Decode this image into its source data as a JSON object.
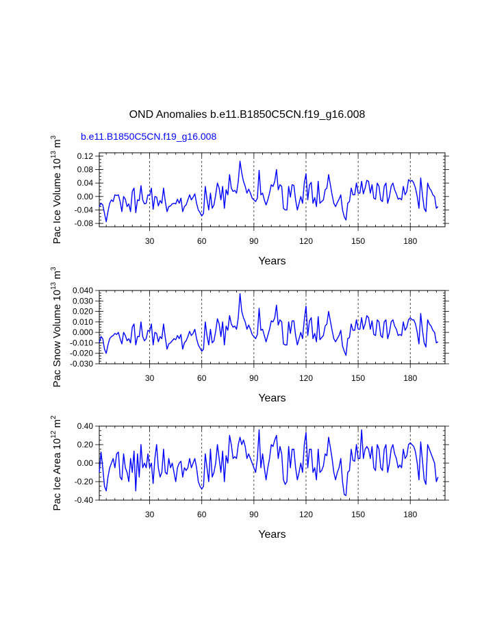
{
  "chart_data": [
    {
      "type": "line",
      "title": "OND Anomalies b.e11.B1850C5CN.f19_g16.008",
      "subtitle": "b.e11.B1850C5CN.f19_g16.008",
      "xlabel": "Years",
      "ylabel": "Pac Ice Volume 10^13 m^3",
      "ylabel_parts": {
        "prefix": "Pac Ice Volume 10",
        "exp1": "13",
        "mid": " m",
        "exp2": "3"
      },
      "xlim": [
        1,
        200
      ],
      "ylim": [
        -0.09,
        0.13
      ],
      "xticks": [
        30,
        60,
        90,
        120,
        150,
        180
      ],
      "yticks": [
        -0.08,
        -0.04,
        0.0,
        0.04,
        0.08,
        0.12
      ],
      "ytick_labels": [
        "-0.08",
        "-0.04",
        "0.00",
        "0.04",
        "0.08",
        "0.12"
      ],
      "grid_x": true,
      "color": "#0000ff",
      "series": [
        {
          "name": "Pac Ice Volume",
          "x_start": 1,
          "values": [
            -0.03,
            -0.02,
            -0.025,
            -0.05,
            -0.075,
            -0.045,
            -0.02,
            -0.01,
            -0.015,
            0.005,
            0.003,
            0.005,
            -0.015,
            -0.045,
            0.0,
            -0.008,
            -0.03,
            -0.022,
            -0.045,
            0.015,
            0.025,
            -0.048,
            -0.01,
            -0.012,
            0.032,
            -0.01,
            -0.022,
            -0.02,
            0.005,
            0.003,
            0.025,
            -0.038,
            0.0,
            -0.002,
            -0.028,
            -0.012,
            -0.02,
            0.025,
            -0.015,
            -0.045,
            -0.03,
            -0.028,
            -0.022,
            -0.02,
            -0.022,
            -0.008,
            -0.02,
            -0.005,
            -0.045,
            -0.03,
            -0.025,
            -0.01,
            0.005,
            -0.01,
            -0.002,
            0.008,
            -0.02,
            -0.04,
            -0.048,
            -0.058,
            -0.05,
            0.03,
            -0.008,
            -0.04,
            0.01,
            -0.035,
            -0.025,
            0.005,
            0.04,
            0.025,
            -0.01,
            0.03,
            -0.035,
            0.02,
            0.005,
            0.065,
            0.025,
            0.015,
            0.018,
            0.01,
            0.045,
            0.105,
            0.07,
            0.045,
            0.03,
            0.01,
            0.022,
            0.01,
            -0.005,
            -0.01,
            -0.015,
            -0.005,
            0.078,
            0.005,
            0.01,
            -0.01,
            -0.025,
            -0.01,
            0.01,
            0.035,
            0.03,
            0.045,
            0.08,
            0.02,
            0.035,
            0.03,
            -0.035,
            -0.04,
            -0.04,
            0.03,
            -0.002,
            0.035,
            0.033,
            -0.01,
            -0.04,
            -0.02,
            0.0,
            -0.02,
            0.04,
            0.068,
            -0.01,
            0.035,
            0.042,
            -0.02,
            -0.003,
            -0.03,
            0.045,
            -0.02,
            -0.015,
            -0.01,
            0.02,
            0.025,
            0.065,
            0.035,
            0.005,
            -0.02,
            -0.03,
            -0.018,
            -0.008,
            0.005,
            -0.04,
            -0.06,
            -0.07,
            -0.02,
            -0.015,
            0.025,
            0.005,
            0.005,
            0.04,
            0.01,
            0.01,
            0.045,
            0.008,
            0.025,
            0.048,
            0.045,
            0.01,
            0.035,
            -0.005,
            -0.008,
            0.04,
            0.03,
            -0.01,
            -0.015,
            0.03,
            0.04,
            -0.02,
            0.0,
            0.03,
            0.04,
            0.02,
            0.008,
            -0.008,
            -0.005,
            -0.01,
            0.03,
            0.005,
            0.015,
            0.05,
            0.045,
            0.048,
            0.04,
            0.025,
            0.0,
            -0.035,
            0.055,
            0.005,
            -0.035,
            -0.045,
            0.04,
            0.025,
            0.018,
            0.005,
            0.0,
            -0.035,
            -0.03
          ]
        }
      ]
    },
    {
      "type": "line",
      "title": "",
      "xlabel": "Years",
      "ylabel": "Pac Snow Volume 10^13 m^3",
      "ylabel_parts": {
        "prefix": "Pac Snow Volume 10",
        "exp1": "13",
        "mid": " m",
        "exp2": "3"
      },
      "xlim": [
        1,
        200
      ],
      "ylim": [
        -0.03,
        0.04
      ],
      "xticks": [
        30,
        60,
        90,
        120,
        150,
        180
      ],
      "yticks": [
        -0.03,
        -0.02,
        -0.01,
        0.0,
        0.01,
        0.02,
        0.03,
        0.04
      ],
      "ytick_labels": [
        "-0.030",
        "-0.020",
        "-0.010",
        "0.000",
        "0.010",
        "0.020",
        "0.030",
        "0.040"
      ],
      "grid_x": true,
      "color": "#0000ff",
      "series": [
        {
          "name": "Pac Snow Volume",
          "x_start": 1,
          "values": [
            -0.01,
            -0.004,
            -0.006,
            -0.016,
            -0.02,
            -0.012,
            -0.006,
            -0.004,
            -0.003,
            -0.001,
            -0.002,
            0.0,
            -0.006,
            -0.011,
            0.0,
            -0.003,
            -0.008,
            -0.006,
            -0.01,
            0.005,
            0.008,
            -0.012,
            -0.004,
            -0.004,
            0.01,
            -0.004,
            -0.008,
            -0.006,
            0.002,
            0.001,
            0.008,
            -0.012,
            0.0,
            -0.001,
            -0.009,
            -0.004,
            -0.006,
            0.008,
            -0.005,
            -0.016,
            -0.011,
            -0.01,
            -0.008,
            -0.006,
            -0.007,
            -0.003,
            -0.006,
            -0.002,
            -0.016,
            -0.01,
            -0.008,
            -0.004,
            0.001,
            -0.003,
            -0.001,
            0.003,
            -0.006,
            -0.012,
            -0.015,
            -0.018,
            -0.016,
            0.01,
            -0.003,
            -0.012,
            0.003,
            -0.01,
            -0.008,
            0.001,
            0.013,
            0.008,
            -0.004,
            0.01,
            -0.012,
            0.006,
            0.002,
            0.016,
            0.008,
            0.005,
            0.006,
            0.003,
            0.014,
            0.037,
            0.02,
            0.014,
            0.01,
            0.003,
            0.007,
            0.003,
            -0.002,
            -0.004,
            -0.006,
            -0.002,
            0.023,
            0.002,
            0.003,
            -0.003,
            -0.009,
            -0.003,
            0.003,
            0.011,
            0.01,
            0.014,
            0.026,
            0.007,
            0.012,
            0.01,
            -0.011,
            -0.012,
            -0.012,
            0.01,
            -0.001,
            0.011,
            0.011,
            -0.003,
            -0.012,
            -0.006,
            0.0,
            -0.006,
            0.012,
            0.025,
            -0.003,
            0.011,
            0.014,
            -0.006,
            -0.001,
            -0.009,
            0.015,
            -0.007,
            -0.005,
            -0.003,
            0.006,
            0.008,
            0.02,
            0.011,
            0.002,
            -0.006,
            -0.009,
            -0.006,
            -0.003,
            0.002,
            -0.013,
            -0.018,
            -0.022,
            -0.006,
            -0.005,
            0.008,
            0.002,
            0.002,
            0.012,
            0.003,
            0.003,
            0.014,
            0.003,
            0.008,
            0.016,
            0.014,
            0.003,
            0.011,
            -0.002,
            -0.003,
            0.012,
            0.01,
            -0.003,
            -0.005,
            0.01,
            0.012,
            -0.006,
            0.0,
            0.01,
            0.012,
            0.006,
            0.003,
            -0.003,
            -0.002,
            -0.003,
            0.01,
            0.002,
            0.005,
            0.012,
            0.014,
            0.012,
            0.012,
            0.008,
            0.0,
            -0.011,
            0.018,
            0.002,
            -0.01,
            -0.014,
            0.012,
            0.008,
            0.006,
            0.002,
            0.0,
            -0.01,
            -0.009
          ]
        }
      ]
    },
    {
      "type": "line",
      "title": "",
      "xlabel": "Years",
      "ylabel": "Pac Ice Area 10^12 m^2",
      "ylabel_parts": {
        "prefix": "Pac Ice Area 10",
        "exp1": "12",
        "mid": " m",
        "exp2": "2"
      },
      "xlim": [
        1,
        200
      ],
      "ylim": [
        -0.4,
        0.4
      ],
      "xticks": [
        30,
        60,
        90,
        120,
        150,
        180
      ],
      "yticks": [
        -0.4,
        -0.2,
        0.0,
        0.2,
        0.4
      ],
      "ytick_labels": [
        "-0.40",
        "-0.20",
        "0.00",
        "0.20",
        "0.40"
      ],
      "grid_x": true,
      "color": "#0000ff",
      "series": [
        {
          "name": "Pac Ice Area",
          "x_start": 1,
          "values": [
            -0.1,
            0.12,
            -0.05,
            -0.25,
            -0.3,
            -0.15,
            -0.05,
            0.0,
            0.05,
            -0.05,
            0.1,
            0.12,
            -0.15,
            -0.18,
            0.1,
            -0.05,
            -0.1,
            -0.2,
            0.05,
            -0.1,
            0.13,
            -0.3,
            0.1,
            -0.15,
            0.2,
            -0.05,
            0.0,
            -0.05,
            0.1,
            -0.05,
            0.0,
            -0.22,
            0.05,
            0.2,
            -0.05,
            -0.15,
            -0.1,
            0.15,
            -0.1,
            -0.12,
            0.05,
            -0.05,
            0.0,
            -0.1,
            -0.2,
            -0.05,
            0.0,
            0.02,
            -0.15,
            -0.05,
            -0.08,
            -0.05,
            0.05,
            -0.05,
            0.0,
            0.05,
            -0.05,
            -0.2,
            -0.25,
            -0.28,
            -0.25,
            0.1,
            -0.05,
            -0.2,
            0.15,
            -0.15,
            -0.1,
            0.0,
            0.2,
            0.05,
            -0.1,
            0.13,
            -0.2,
            0.08,
            0.0,
            0.3,
            0.2,
            0.05,
            0.07,
            0.05,
            0.2,
            0.28,
            0.2,
            0.25,
            0.18,
            0.05,
            0.1,
            0.05,
            0.0,
            -0.05,
            -0.1,
            0.05,
            0.36,
            -0.05,
            0.1,
            -0.05,
            -0.18,
            -0.05,
            0.05,
            0.2,
            0.18,
            0.25,
            0.3,
            0.05,
            0.18,
            0.1,
            -0.18,
            -0.23,
            -0.2,
            0.18,
            -0.05,
            0.15,
            0.15,
            -0.05,
            -0.18,
            -0.1,
            0.0,
            -0.1,
            0.2,
            0.33,
            -0.05,
            0.15,
            0.15,
            -0.1,
            -0.05,
            -0.18,
            0.15,
            -0.1,
            -0.08,
            -0.03,
            0.1,
            0.08,
            0.28,
            0.17,
            0.05,
            -0.1,
            -0.18,
            -0.1,
            -0.05,
            0.05,
            -0.2,
            -0.34,
            -0.35,
            -0.1,
            -0.08,
            0.15,
            0.03,
            0.02,
            0.2,
            0.05,
            0.05,
            0.36,
            0.05,
            0.15,
            0.18,
            0.15,
            0.05,
            0.18,
            -0.05,
            -0.08,
            0.2,
            0.15,
            -0.05,
            -0.08,
            0.15,
            0.2,
            -0.1,
            0.0,
            0.15,
            0.2,
            0.1,
            0.05,
            -0.05,
            -0.02,
            -0.05,
            0.15,
            0.05,
            0.08,
            0.2,
            0.22,
            0.2,
            0.18,
            0.12,
            0.0,
            -0.18,
            0.23,
            0.03,
            -0.18,
            -0.23,
            0.2,
            0.15,
            0.1,
            0.05,
            0.0,
            -0.2,
            -0.15
          ]
        }
      ]
    }
  ]
}
